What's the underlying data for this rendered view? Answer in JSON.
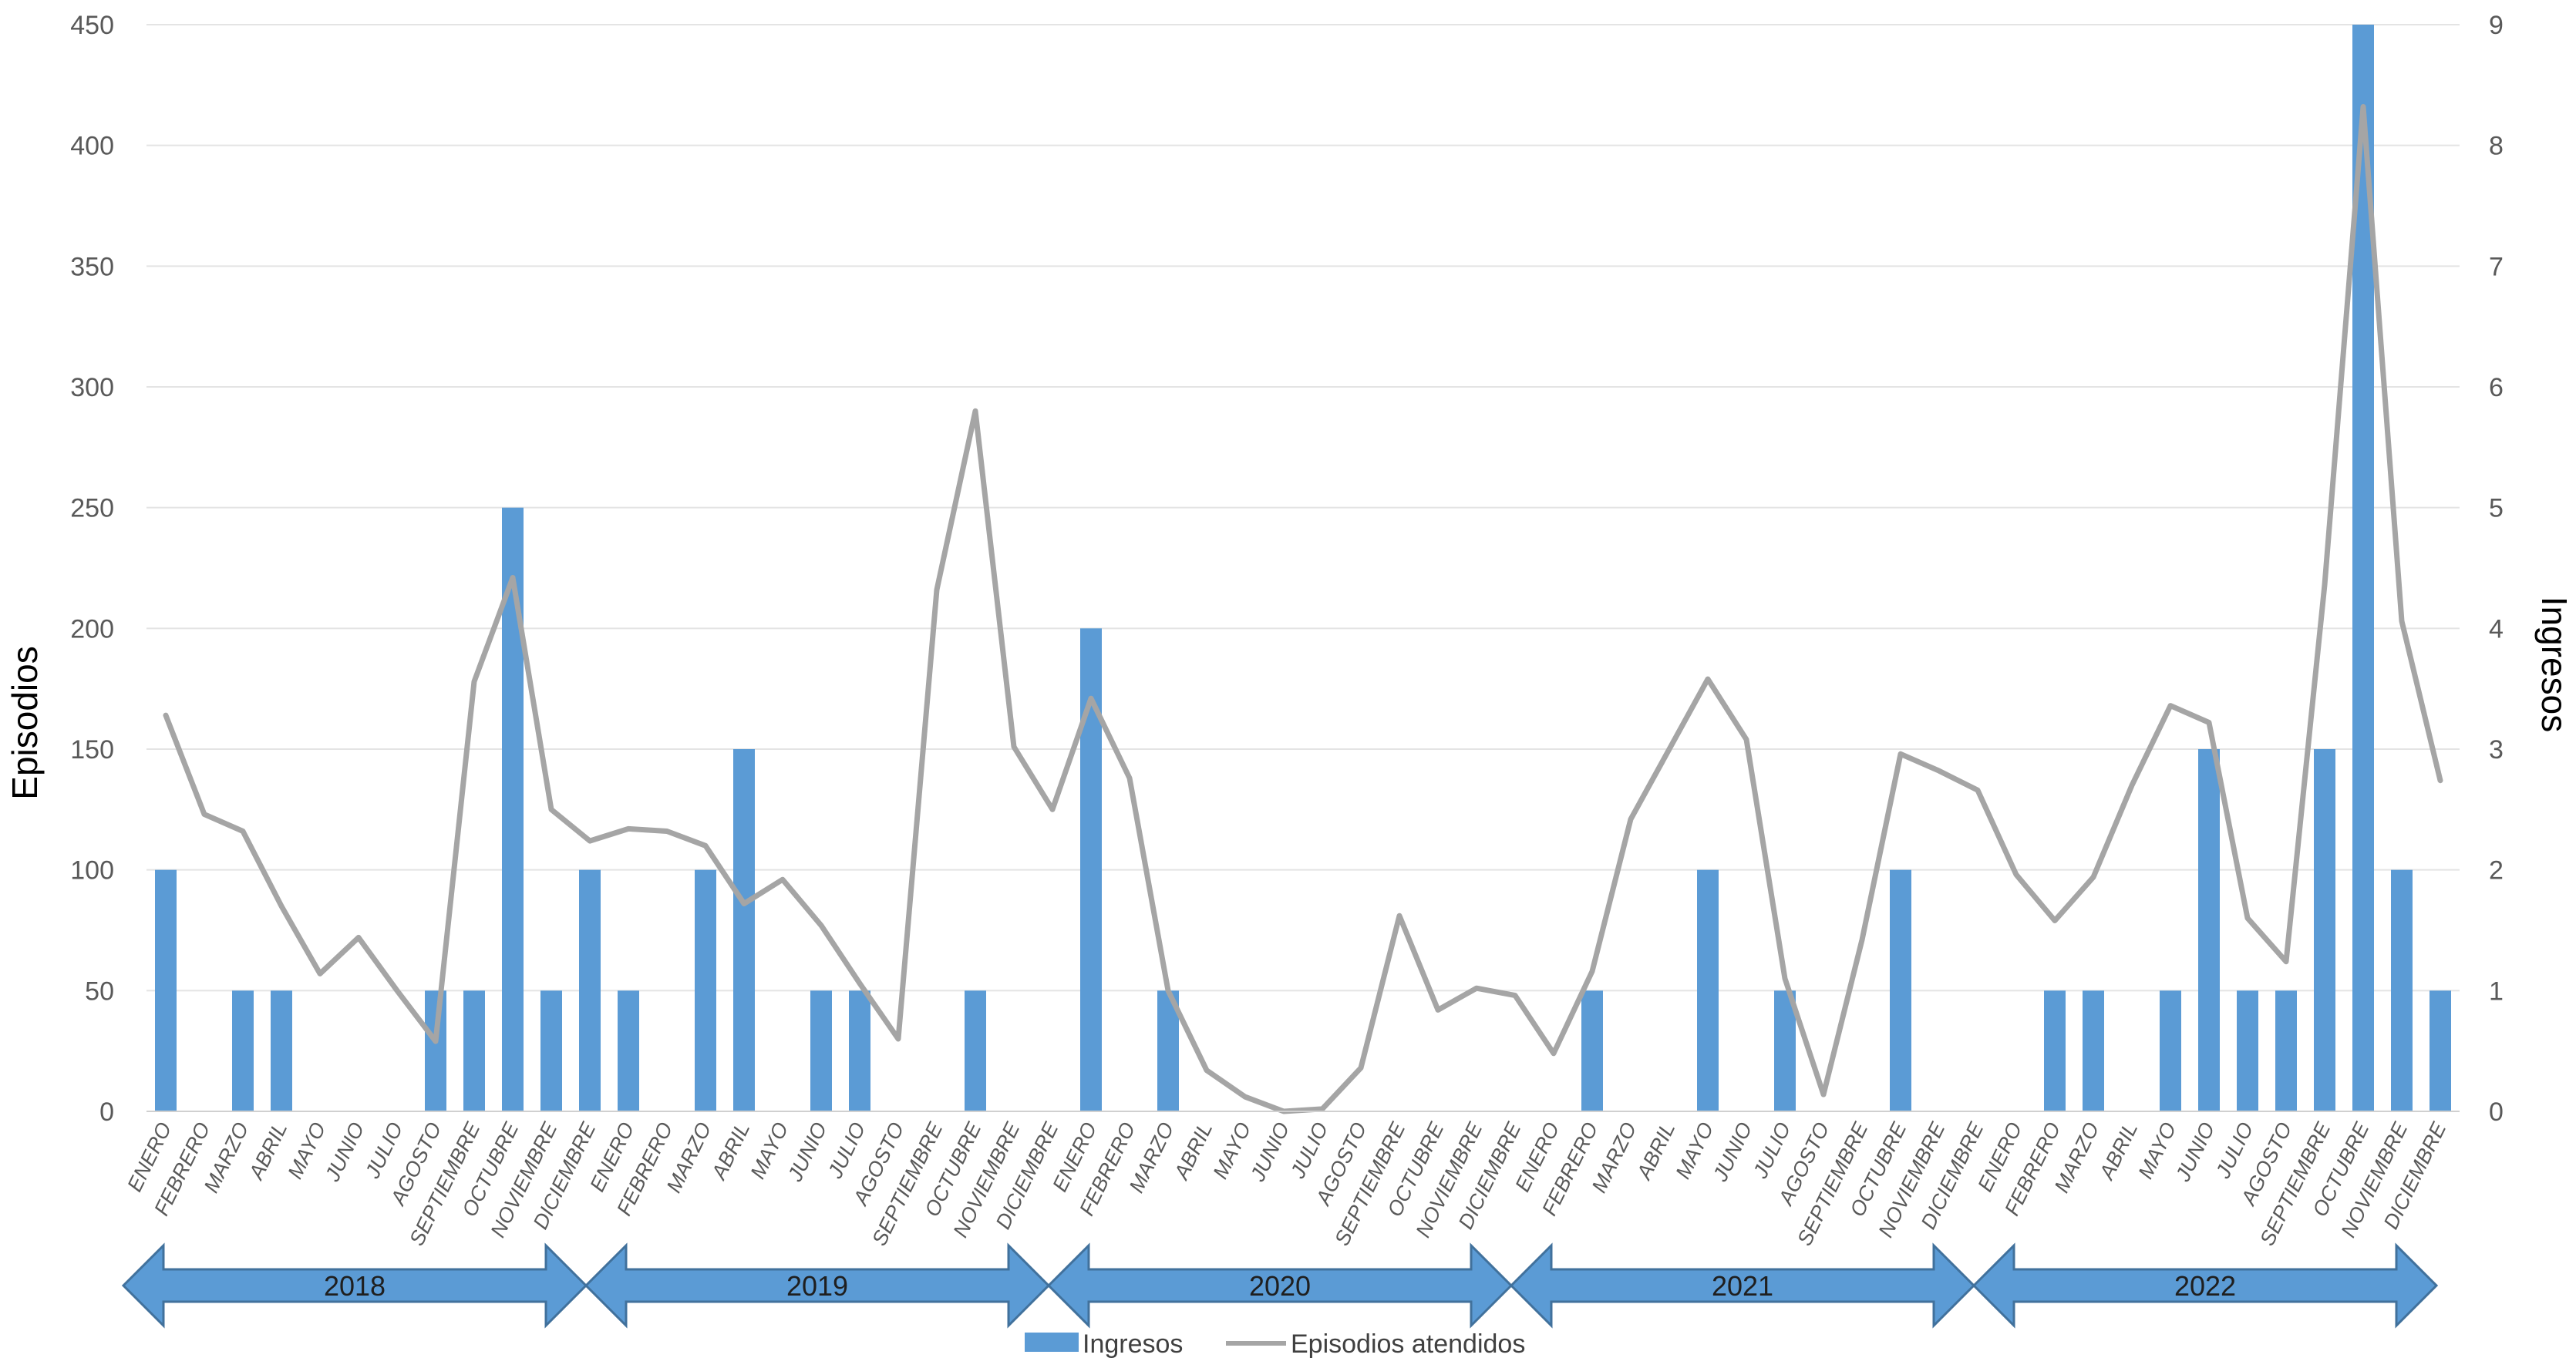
{
  "colors": {
    "bar": "#5b9bd5",
    "line": "#a5a5a5",
    "grid": "#e4e4e4",
    "arrow_fill": "#5b9bd5",
    "arrow_stroke": "#41719c"
  },
  "chart_data": {
    "type": "bar+line",
    "ylabel_left": "Episodios",
    "ylabel_right": "Ingresos",
    "ylim_left": [
      0,
      450
    ],
    "ylim_right": [
      0,
      9
    ],
    "yticks_left": [
      "0",
      "50",
      "100",
      "150",
      "200",
      "250",
      "300",
      "350",
      "400",
      "450"
    ],
    "yticks_right": [
      "0",
      "1",
      "2",
      "3",
      "4",
      "5",
      "6",
      "7",
      "8",
      "9"
    ],
    "grid": true,
    "legend_position": "bottom",
    "legend": [
      "Ingresos",
      "Episodios atendidos"
    ],
    "years": [
      "2018",
      "2019",
      "2020",
      "2021",
      "2022"
    ],
    "months": [
      "ENERO",
      "FEBRERO",
      "MARZO",
      "ABRIL",
      "MAYO",
      "JUNIO",
      "JULIO",
      "AGOSTO",
      "SEPTIEMBRE",
      "OCTUBRE",
      "NOVIEMBRE",
      "DICIEMBRE"
    ],
    "series": [
      {
        "name": "Ingresos",
        "type": "bar",
        "axis": "right",
        "values": [
          2,
          0,
          1,
          1,
          0,
          0,
          0,
          1,
          1,
          5,
          1,
          2,
          1,
          0,
          2,
          3,
          0,
          1,
          1,
          0,
          0,
          1,
          0,
          0,
          4,
          0,
          1,
          0,
          0,
          0,
          0,
          0,
          0,
          0,
          0,
          0,
          0,
          1,
          0,
          0,
          2,
          0,
          1,
          0,
          0,
          2,
          0,
          0,
          0,
          1,
          1,
          0,
          1,
          3,
          1,
          1,
          3,
          9,
          2,
          1
        ]
      },
      {
        "name": "Episodios atendidos",
        "type": "line",
        "axis": "left",
        "values": [
          164,
          123,
          116,
          85,
          57,
          72,
          50,
          29,
          178,
          221,
          125,
          112,
          117,
          116,
          110,
          86,
          96,
          77,
          53,
          30,
          216,
          290,
          151,
          125,
          171,
          138,
          50,
          17,
          6,
          0,
          1,
          18,
          81,
          42,
          51,
          48,
          24,
          58,
          121,
          150,
          179,
          154,
          55,
          7,
          71,
          148,
          141,
          133,
          98,
          79,
          97,
          135,
          168,
          161,
          80,
          62,
          218,
          416,
          203,
          137
        ]
      }
    ]
  }
}
